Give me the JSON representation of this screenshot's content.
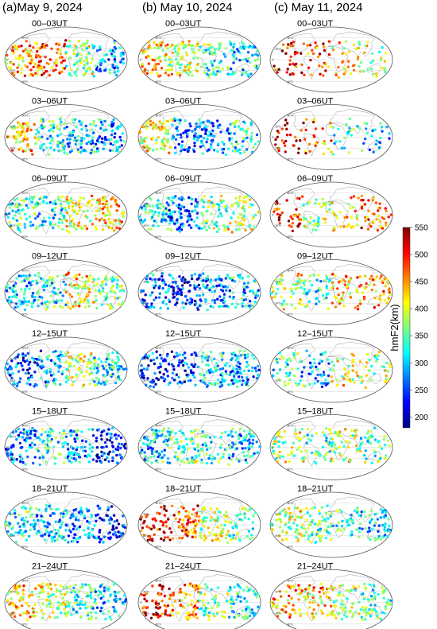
{
  "columns": [
    {
      "panel": "(a)",
      "date": "May 9, 2024"
    },
    {
      "panel": "(b)",
      "date": "May 10, 2024"
    },
    {
      "panel": "(c)",
      "date": "May 11, 2024"
    }
  ],
  "time_windows": [
    "00–03UT",
    "03–06UT",
    "06–09UT",
    "09–12UT",
    "12–15UT",
    "15–18UT",
    "18–21UT",
    "21–24UT"
  ],
  "colorbar": {
    "label": "hmF2(km)",
    "ticks": [
      550,
      500,
      450,
      400,
      350,
      300,
      250,
      200
    ],
    "min": 180,
    "max": 550,
    "colormap": "jet",
    "colors": [
      "#00007f",
      "#0000ff",
      "#007fff",
      "#00ffff",
      "#7fff7f",
      "#ffff00",
      "#ff7f00",
      "#ff0000",
      "#7f0000"
    ]
  },
  "map": {
    "graticule_labels_lat": [
      "60°N",
      "30°N",
      "0°",
      "30°S",
      "60°S"
    ]
  },
  "chart_data": {
    "type": "scatter",
    "title": "",
    "xlabel": "",
    "ylabel": "",
    "colorbar_label": "hmF2(km)",
    "clim": [
      180,
      550
    ],
    "panels_note": "3 columns (dates) x 8 rows (3-hour UT windows); each panel is a global map of hmF2 observation points colored by height",
    "panels": [
      {
        "date": "May 9, 2024",
        "window": "00–03UT",
        "bands": [
          [
            -180,
            -90,
            430
          ],
          [
            -90,
            0,
            470
          ],
          [
            0,
            90,
            360
          ],
          [
            90,
            180,
            280
          ]
        ],
        "density": 1.0
      },
      {
        "date": "May 9, 2024",
        "window": "03–06UT",
        "bands": [
          [
            -180,
            -90,
            420
          ],
          [
            -90,
            0,
            330
          ],
          [
            0,
            90,
            300
          ],
          [
            90,
            180,
            280
          ]
        ],
        "density": 1.0
      },
      {
        "date": "May 9, 2024",
        "window": "06–09UT",
        "bands": [
          [
            -180,
            -90,
            330
          ],
          [
            -90,
            0,
            320
          ],
          [
            0,
            90,
            400
          ],
          [
            90,
            180,
            430
          ]
        ],
        "density": 1.0
      },
      {
        "date": "May 9, 2024",
        "window": "09–12UT",
        "bands": [
          [
            -180,
            -90,
            300
          ],
          [
            -90,
            0,
            320
          ],
          [
            0,
            90,
            400
          ],
          [
            90,
            180,
            360
          ]
        ],
        "density": 1.0
      },
      {
        "date": "May 9, 2024",
        "window": "12–15UT",
        "bands": [
          [
            -180,
            -90,
            250
          ],
          [
            -90,
            0,
            280
          ],
          [
            0,
            90,
            380
          ],
          [
            90,
            180,
            320
          ]
        ],
        "density": 1.0
      },
      {
        "date": "May 9, 2024",
        "window": "15–18UT",
        "bands": [
          [
            -180,
            -90,
            260
          ],
          [
            -90,
            0,
            320
          ],
          [
            0,
            90,
            280
          ],
          [
            90,
            180,
            240
          ]
        ],
        "density": 1.0
      },
      {
        "date": "May 9, 2024",
        "window": "18–21UT",
        "bands": [
          [
            -180,
            -90,
            330
          ],
          [
            -90,
            0,
            300
          ],
          [
            0,
            90,
            270
          ],
          [
            90,
            180,
            230
          ]
        ],
        "density": 1.0
      },
      {
        "date": "May 9, 2024",
        "window": "21–24UT",
        "bands": [
          [
            -180,
            -90,
            420
          ],
          [
            -90,
            0,
            380
          ],
          [
            0,
            90,
            330
          ],
          [
            90,
            180,
            300
          ]
        ],
        "density": 1.0
      },
      {
        "date": "May 10, 2024",
        "window": "00–03UT",
        "bands": [
          [
            -180,
            -90,
            420
          ],
          [
            -90,
            0,
            380
          ],
          [
            0,
            90,
            330
          ],
          [
            90,
            180,
            310
          ]
        ],
        "density": 1.0
      },
      {
        "date": "May 10, 2024",
        "window": "03–06UT",
        "bands": [
          [
            -180,
            -90,
            400
          ],
          [
            -90,
            0,
            260
          ],
          [
            0,
            90,
            270
          ],
          [
            90,
            180,
            320
          ]
        ],
        "density": 1.0
      },
      {
        "date": "May 10, 2024",
        "window": "06–09UT",
        "bands": [
          [
            -180,
            -90,
            320
          ],
          [
            -90,
            0,
            260
          ],
          [
            0,
            90,
            350
          ],
          [
            90,
            180,
            380
          ]
        ],
        "density": 1.0
      },
      {
        "date": "May 10, 2024",
        "window": "09–12UT",
        "bands": [
          [
            -180,
            -90,
            260
          ],
          [
            -90,
            0,
            230
          ],
          [
            0,
            90,
            280
          ],
          [
            90,
            180,
            300
          ]
        ],
        "density": 1.0
      },
      {
        "date": "May 10, 2024",
        "window": "12–15UT",
        "bands": [
          [
            -180,
            -90,
            230
          ],
          [
            -90,
            0,
            250
          ],
          [
            0,
            90,
            300
          ],
          [
            90,
            180,
            280
          ]
        ],
        "density": 1.0
      },
      {
        "date": "May 10, 2024",
        "window": "15–18UT",
        "bands": [
          [
            -180,
            -90,
            300
          ],
          [
            -90,
            0,
            340
          ],
          [
            0,
            90,
            320
          ],
          [
            90,
            180,
            300
          ]
        ],
        "density": 1.0
      },
      {
        "date": "May 10, 2024",
        "window": "18–21UT",
        "bands": [
          [
            -180,
            -90,
            500
          ],
          [
            -90,
            0,
            470
          ],
          [
            0,
            90,
            380
          ],
          [
            90,
            180,
            340
          ]
        ],
        "density": 0.85
      },
      {
        "date": "May 10, 2024",
        "window": "21–24UT",
        "bands": [
          [
            -180,
            -90,
            500
          ],
          [
            -90,
            0,
            440
          ],
          [
            0,
            90,
            360
          ],
          [
            90,
            180,
            320
          ]
        ],
        "density": 0.85
      },
      {
        "date": "May 11, 2024",
        "window": "00–03UT",
        "bands": [
          [
            -180,
            -90,
            500
          ],
          [
            -90,
            0,
            470
          ],
          [
            0,
            90,
            400
          ],
          [
            90,
            180,
            380
          ]
        ],
        "density": 0.45
      },
      {
        "date": "May 11, 2024",
        "window": "03–06UT",
        "bands": [
          [
            -180,
            -90,
            520
          ],
          [
            -90,
            0,
            450
          ],
          [
            0,
            90,
            330
          ],
          [
            90,
            180,
            300
          ]
        ],
        "density": 0.4
      },
      {
        "date": "May 11, 2024",
        "window": "06–09UT",
        "bands": [
          [
            -180,
            -90,
            500
          ],
          [
            -90,
            0,
            380
          ],
          [
            0,
            90,
            420
          ],
          [
            90,
            180,
            470
          ]
        ],
        "density": 0.6
      },
      {
        "date": "May 11, 2024",
        "window": "09–12UT",
        "bands": [
          [
            -180,
            -90,
            380
          ],
          [
            -90,
            0,
            330
          ],
          [
            0,
            90,
            420
          ],
          [
            90,
            180,
            440
          ]
        ],
        "density": 0.7
      },
      {
        "date": "May 11, 2024",
        "window": "12–15UT",
        "bands": [
          [
            -180,
            -90,
            330
          ],
          [
            -90,
            0,
            280
          ],
          [
            0,
            90,
            400
          ],
          [
            90,
            180,
            380
          ]
        ],
        "density": 0.6
      },
      {
        "date": "May 11, 2024",
        "window": "15–18UT",
        "bands": [
          [
            -180,
            -90,
            380
          ],
          [
            -90,
            0,
            340
          ],
          [
            0,
            90,
            380
          ],
          [
            90,
            180,
            340
          ]
        ],
        "density": 0.7
      },
      {
        "date": "May 11, 2024",
        "window": "18–21UT",
        "bands": [
          [
            -180,
            -90,
            380
          ],
          [
            -90,
            0,
            350
          ],
          [
            0,
            90,
            330
          ],
          [
            90,
            180,
            300
          ]
        ],
        "density": 0.85
      },
      {
        "date": "May 11, 2024",
        "window": "21–24UT",
        "bands": [
          [
            -180,
            -90,
            440
          ],
          [
            -90,
            0,
            420
          ],
          [
            0,
            90,
            380
          ],
          [
            90,
            180,
            340
          ]
        ],
        "density": 0.85
      }
    ]
  }
}
